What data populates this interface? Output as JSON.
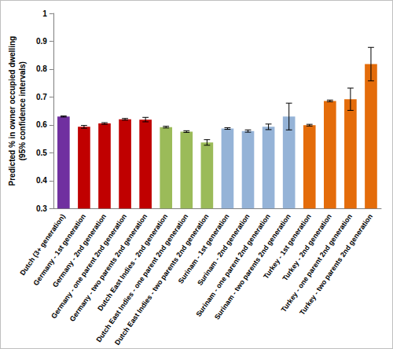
{
  "chart_data": {
    "type": "bar",
    "y_label": "Predicted % in owner occupied dwelling\n(95% confidence intervals)",
    "categories": [
      "Dutch (3+ generation)",
      "Germany - 1st generation",
      "Germany - 2nd generation",
      "Germany - one parent 2nd generation",
      "Germany - two parents 2nd generation",
      "Dutch East Indies - 2nd generation",
      "Dutch East Indies - one parent 2nd generation",
      "Dutch East Indies - two parents 2nd generation",
      "Surinam - 1st generation",
      "Surinam - 2nd generation",
      "Surinam - one parent 2nd generation",
      "Surinam - two parents 2nd generation",
      "Turkey - 1st generation",
      "Turkey - 2nd generation",
      "Turkey - one parent 2nd generation",
      "Turkey - two parents 2nd generation"
    ],
    "values": [
      0.63,
      0.593,
      0.605,
      0.62,
      0.619,
      0.592,
      0.576,
      0.537,
      0.587,
      0.578,
      0.593,
      0.63,
      0.599,
      0.686,
      0.692,
      0.818
    ],
    "errors": [
      0.002,
      0.005,
      0.003,
      0.003,
      0.008,
      0.003,
      0.003,
      0.01,
      0.003,
      0.004,
      0.01,
      0.048,
      0.003,
      0.003,
      0.04,
      0.06
    ],
    "colors": [
      "#7030a0",
      "#c00000",
      "#c00000",
      "#c00000",
      "#c00000",
      "#9bbb59",
      "#9bbb59",
      "#9bbb59",
      "#95b3d7",
      "#95b3d7",
      "#95b3d7",
      "#95b3d7",
      "#e46c0a",
      "#e46c0a",
      "#e46c0a",
      "#e46c0a"
    ],
    "ylim": [
      0.3,
      1
    ],
    "yticks": [
      0.3,
      0.4,
      0.5,
      0.6,
      0.7,
      0.8,
      0.9,
      1
    ],
    "grid": false
  }
}
